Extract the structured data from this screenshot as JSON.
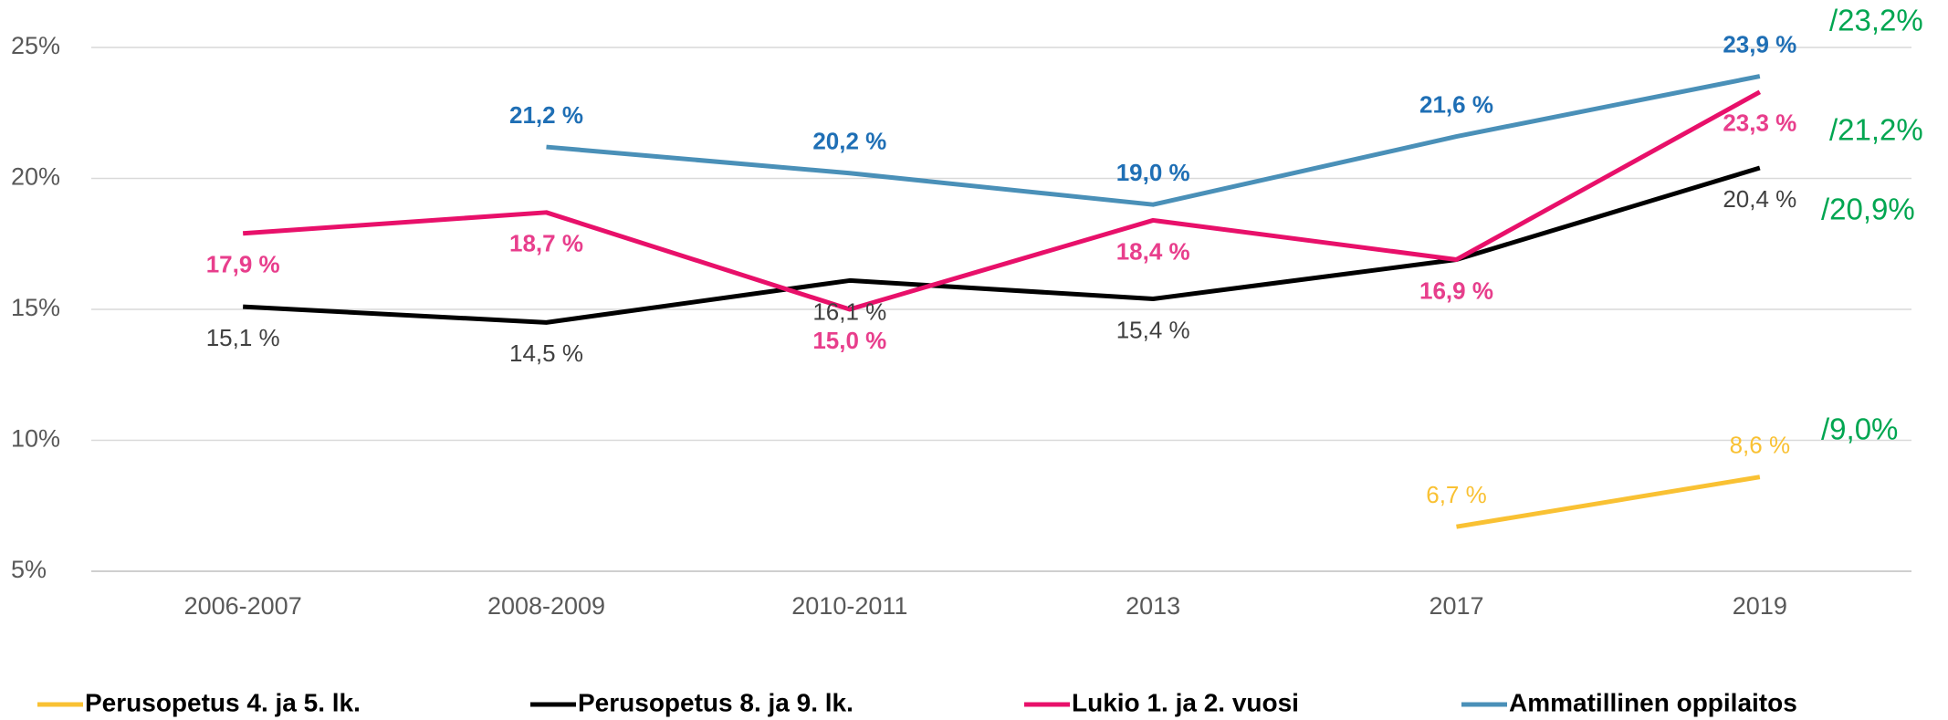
{
  "chart_data": {
    "type": "line",
    "categories": [
      "2006-2007",
      "2008-2009",
      "2010-2011",
      "2013",
      "2017",
      "2019"
    ],
    "series": [
      {
        "name": "Perusopetus 4. ja 5. lk.",
        "color": "#f9c133",
        "values": [
          null,
          null,
          null,
          null,
          6.7,
          8.6
        ],
        "value_labels": [
          null,
          null,
          null,
          null,
          "6,7 %",
          "8,6 %"
        ]
      },
      {
        "name": "Perusopetus 8. ja 9. lk.",
        "color": "#000000",
        "values": [
          15.1,
          14.5,
          16.1,
          15.4,
          16.9,
          20.4
        ],
        "value_labels": [
          "15,1 %",
          "14,5 %",
          "16,1 %",
          "15,4 %",
          "16,9 %",
          "20,4 %"
        ]
      },
      {
        "name": "Lukio 1. ja 2. vuosi",
        "color": "#e8106a",
        "values": [
          17.9,
          18.7,
          15.0,
          18.4,
          16.9,
          23.3
        ],
        "value_labels": [
          "17,9 %",
          "18,7 %",
          "15,0 %",
          "18,4 %",
          "16,9 %",
          "23,3 %"
        ]
      },
      {
        "name": "Ammatillinen oppilaitos",
        "color": "#4a90b8",
        "values": [
          null,
          21.2,
          20.2,
          19.0,
          21.6,
          23.9
        ],
        "value_labels": [
          null,
          "21,2 %",
          "20,2 %",
          "19,0 %",
          "21,6 %",
          "23,9 %"
        ]
      }
    ],
    "ylim": [
      5,
      25
    ],
    "yticks": [
      {
        "value": 5,
        "label": "5%"
      },
      {
        "value": 10,
        "label": "10%"
      },
      {
        "value": 15,
        "label": "15%"
      },
      {
        "value": 20,
        "label": "20%"
      },
      {
        "value": 25,
        "label": "25%"
      }
    ],
    "grid": true,
    "legend": "bottom",
    "annotations": [
      "/23,2%",
      "/21,2%",
      "/20,9%",
      "/9,0%"
    ],
    "annotation_color": "#00a651"
  }
}
